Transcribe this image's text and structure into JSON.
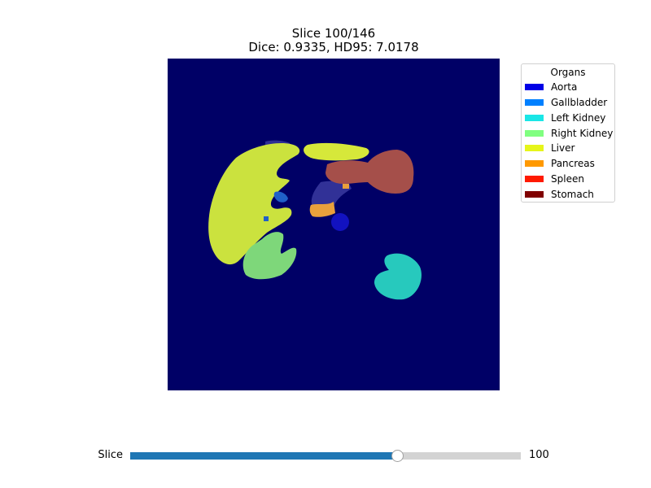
{
  "figure": {
    "title_line1": "Slice 100/146",
    "title_line2": "Dice: 0.9335, HD95: 7.0178"
  },
  "image": {
    "background_color": "#000066",
    "overlay": "segmentation overlay on CT slice"
  },
  "legend": {
    "title": "Organs",
    "items": [
      {
        "label": "Aorta",
        "color": "#0000e6"
      },
      {
        "label": "Gallbladder",
        "color": "#0080ff"
      },
      {
        "label": "Left Kidney",
        "color": "#1ae6e6"
      },
      {
        "label": "Right Kidney",
        "color": "#80ff80"
      },
      {
        "label": "Liver",
        "color": "#e6f51a"
      },
      {
        "label": "Pancreas",
        "color": "#ff9900"
      },
      {
        "label": "Spleen",
        "color": "#ff1a00"
      },
      {
        "label": "Stomach",
        "color": "#800000"
      }
    ]
  },
  "slider": {
    "label": "Slice",
    "value": 100,
    "value_text": "100",
    "min": 0,
    "max": 146,
    "fill_color": "#1f77b4",
    "track_color": "#d3d3d3"
  }
}
